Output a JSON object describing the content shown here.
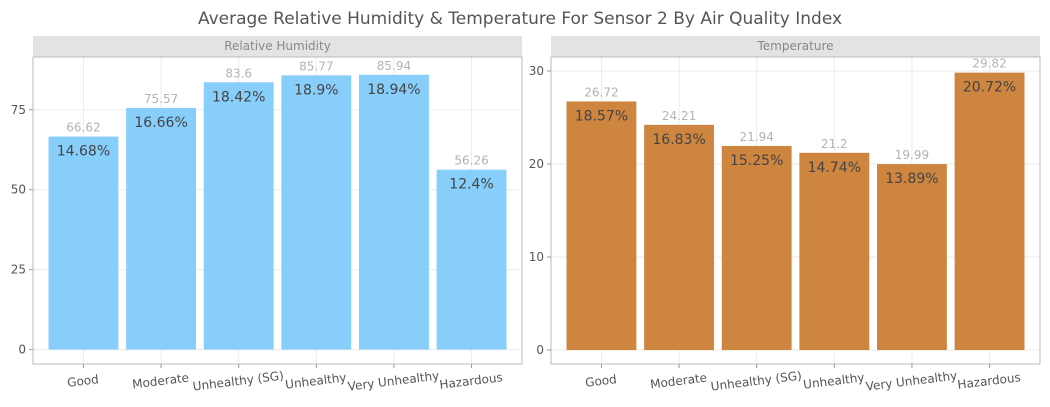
{
  "title": "Average Relative Humidity & Temperature For Sensor 2 By Air Quality Index",
  "colors": {
    "humidity": "#87CEFA",
    "temperature": "#CD853F"
  },
  "chart_data": [
    {
      "type": "bar",
      "title": "Relative Humidity",
      "categories": [
        "Good",
        "Moderate",
        "Unhealthy (SG)",
        "Unhealthy",
        "Very Unhealthy",
        "Hazardous"
      ],
      "values": [
        66.62,
        75.57,
        83.6,
        85.77,
        85.94,
        56.26
      ],
      "value_labels": [
        "66.62",
        "75.57",
        "83.6",
        "85.77",
        "85.94",
        "56.26"
      ],
      "percent_labels": [
        "14.68%",
        "16.66%",
        "18.42%",
        "18.9%",
        "18.94%",
        "12.4%"
      ],
      "yticks": [
        0,
        25,
        50,
        75
      ],
      "ylim": [
        -4.5,
        91.5
      ],
      "color": "#87CEFA",
      "grid": true
    },
    {
      "type": "bar",
      "title": "Temperature",
      "categories": [
        "Good",
        "Moderate",
        "Unhealthy (SG)",
        "Unhealthy",
        "Very Unhealthy",
        "Hazardous"
      ],
      "values": [
        26.72,
        24.21,
        21.94,
        21.2,
        19.99,
        29.82
      ],
      "value_labels": [
        "26.72",
        "24.21",
        "21.94",
        "21.2",
        "19.99",
        "29.82"
      ],
      "percent_labels": [
        "18.57%",
        "16.83%",
        "15.25%",
        "14.74%",
        "13.89%",
        "20.72%"
      ],
      "yticks": [
        0,
        10,
        20,
        30
      ],
      "ylim": [
        -1.5,
        31.5
      ],
      "color": "#CD853F",
      "grid": true
    }
  ]
}
